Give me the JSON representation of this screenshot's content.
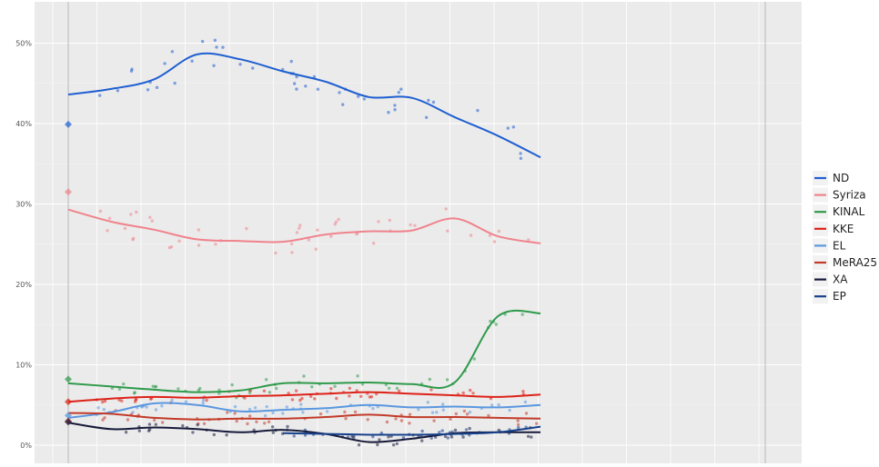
{
  "chart_data": {
    "type": "scatter",
    "title": "",
    "xlabel": "",
    "ylabel": "",
    "ylim": [
      0,
      56
    ],
    "yticks": [
      "0%",
      "10%",
      "20%",
      "30%",
      "40%",
      "50%"
    ],
    "ytick_values": [
      0,
      10,
      20,
      30,
      40,
      50
    ],
    "grid": true,
    "legend_position": "right",
    "background": "#ebebeb",
    "series": [
      {
        "name": "ND",
        "color": "#1f5fd1",
        "trend": [
          43.6,
          44.3,
          45.5,
          48.6,
          48.0,
          46.5,
          45.2,
          43.3,
          43.2,
          40.8,
          38.5,
          35.8
        ],
        "start_marker": 39.9,
        "spread": 2.2
      },
      {
        "name": "Syriza",
        "color": "#f0838c",
        "trend": [
          29.3,
          27.8,
          26.8,
          25.6,
          25.4,
          25.3,
          26.2,
          26.6,
          26.7,
          28.2,
          26.0,
          25.1
        ],
        "start_marker": 31.5,
        "spread": 1.8
      },
      {
        "name": "KINAL",
        "color": "#2e9a4a",
        "trend": [
          7.7,
          7.3,
          6.9,
          6.6,
          6.8,
          7.7,
          7.7,
          7.8,
          7.6,
          7.8,
          16.0,
          16.4
        ],
        "start_marker": 8.2,
        "spread": 0.9
      },
      {
        "name": "KKE",
        "color": "#dd2218",
        "trend": [
          5.4,
          5.8,
          6.0,
          5.9,
          6.1,
          6.2,
          6.4,
          6.6,
          6.4,
          6.2,
          6.0,
          6.3
        ],
        "start_marker": 5.4,
        "spread": 0.7
      },
      {
        "name": "EL",
        "color": "#5a97e0",
        "trend": [
          3.4,
          4.1,
          5.2,
          5.0,
          4.2,
          4.4,
          4.6,
          5.0,
          4.7,
          4.8,
          4.7,
          5.0
        ],
        "start_marker": 3.7,
        "spread": 0.8
      },
      {
        "name": "MeRA25",
        "color": "#c23a28",
        "trend": [
          4.0,
          3.9,
          3.4,
          3.2,
          3.3,
          3.3,
          3.5,
          3.8,
          3.5,
          3.5,
          3.4,
          3.3
        ],
        "start_marker": 3.0,
        "spread": 0.8
      },
      {
        "name": "XA",
        "color": "#161a3a",
        "trend": [
          2.8,
          2.0,
          2.2,
          2.0,
          1.6,
          1.9,
          1.4,
          0.4,
          0.8,
          1.5,
          1.6,
          1.6
        ],
        "start_marker": 2.9,
        "spread": 0.6
      },
      {
        "name": "EP",
        "color": "#17408b",
        "trend": [
          null,
          null,
          null,
          null,
          null,
          1.5,
          1.4,
          1.3,
          1.3,
          1.4,
          1.6,
          2.3
        ],
        "start_marker": null,
        "spread": 0.5
      }
    ]
  }
}
